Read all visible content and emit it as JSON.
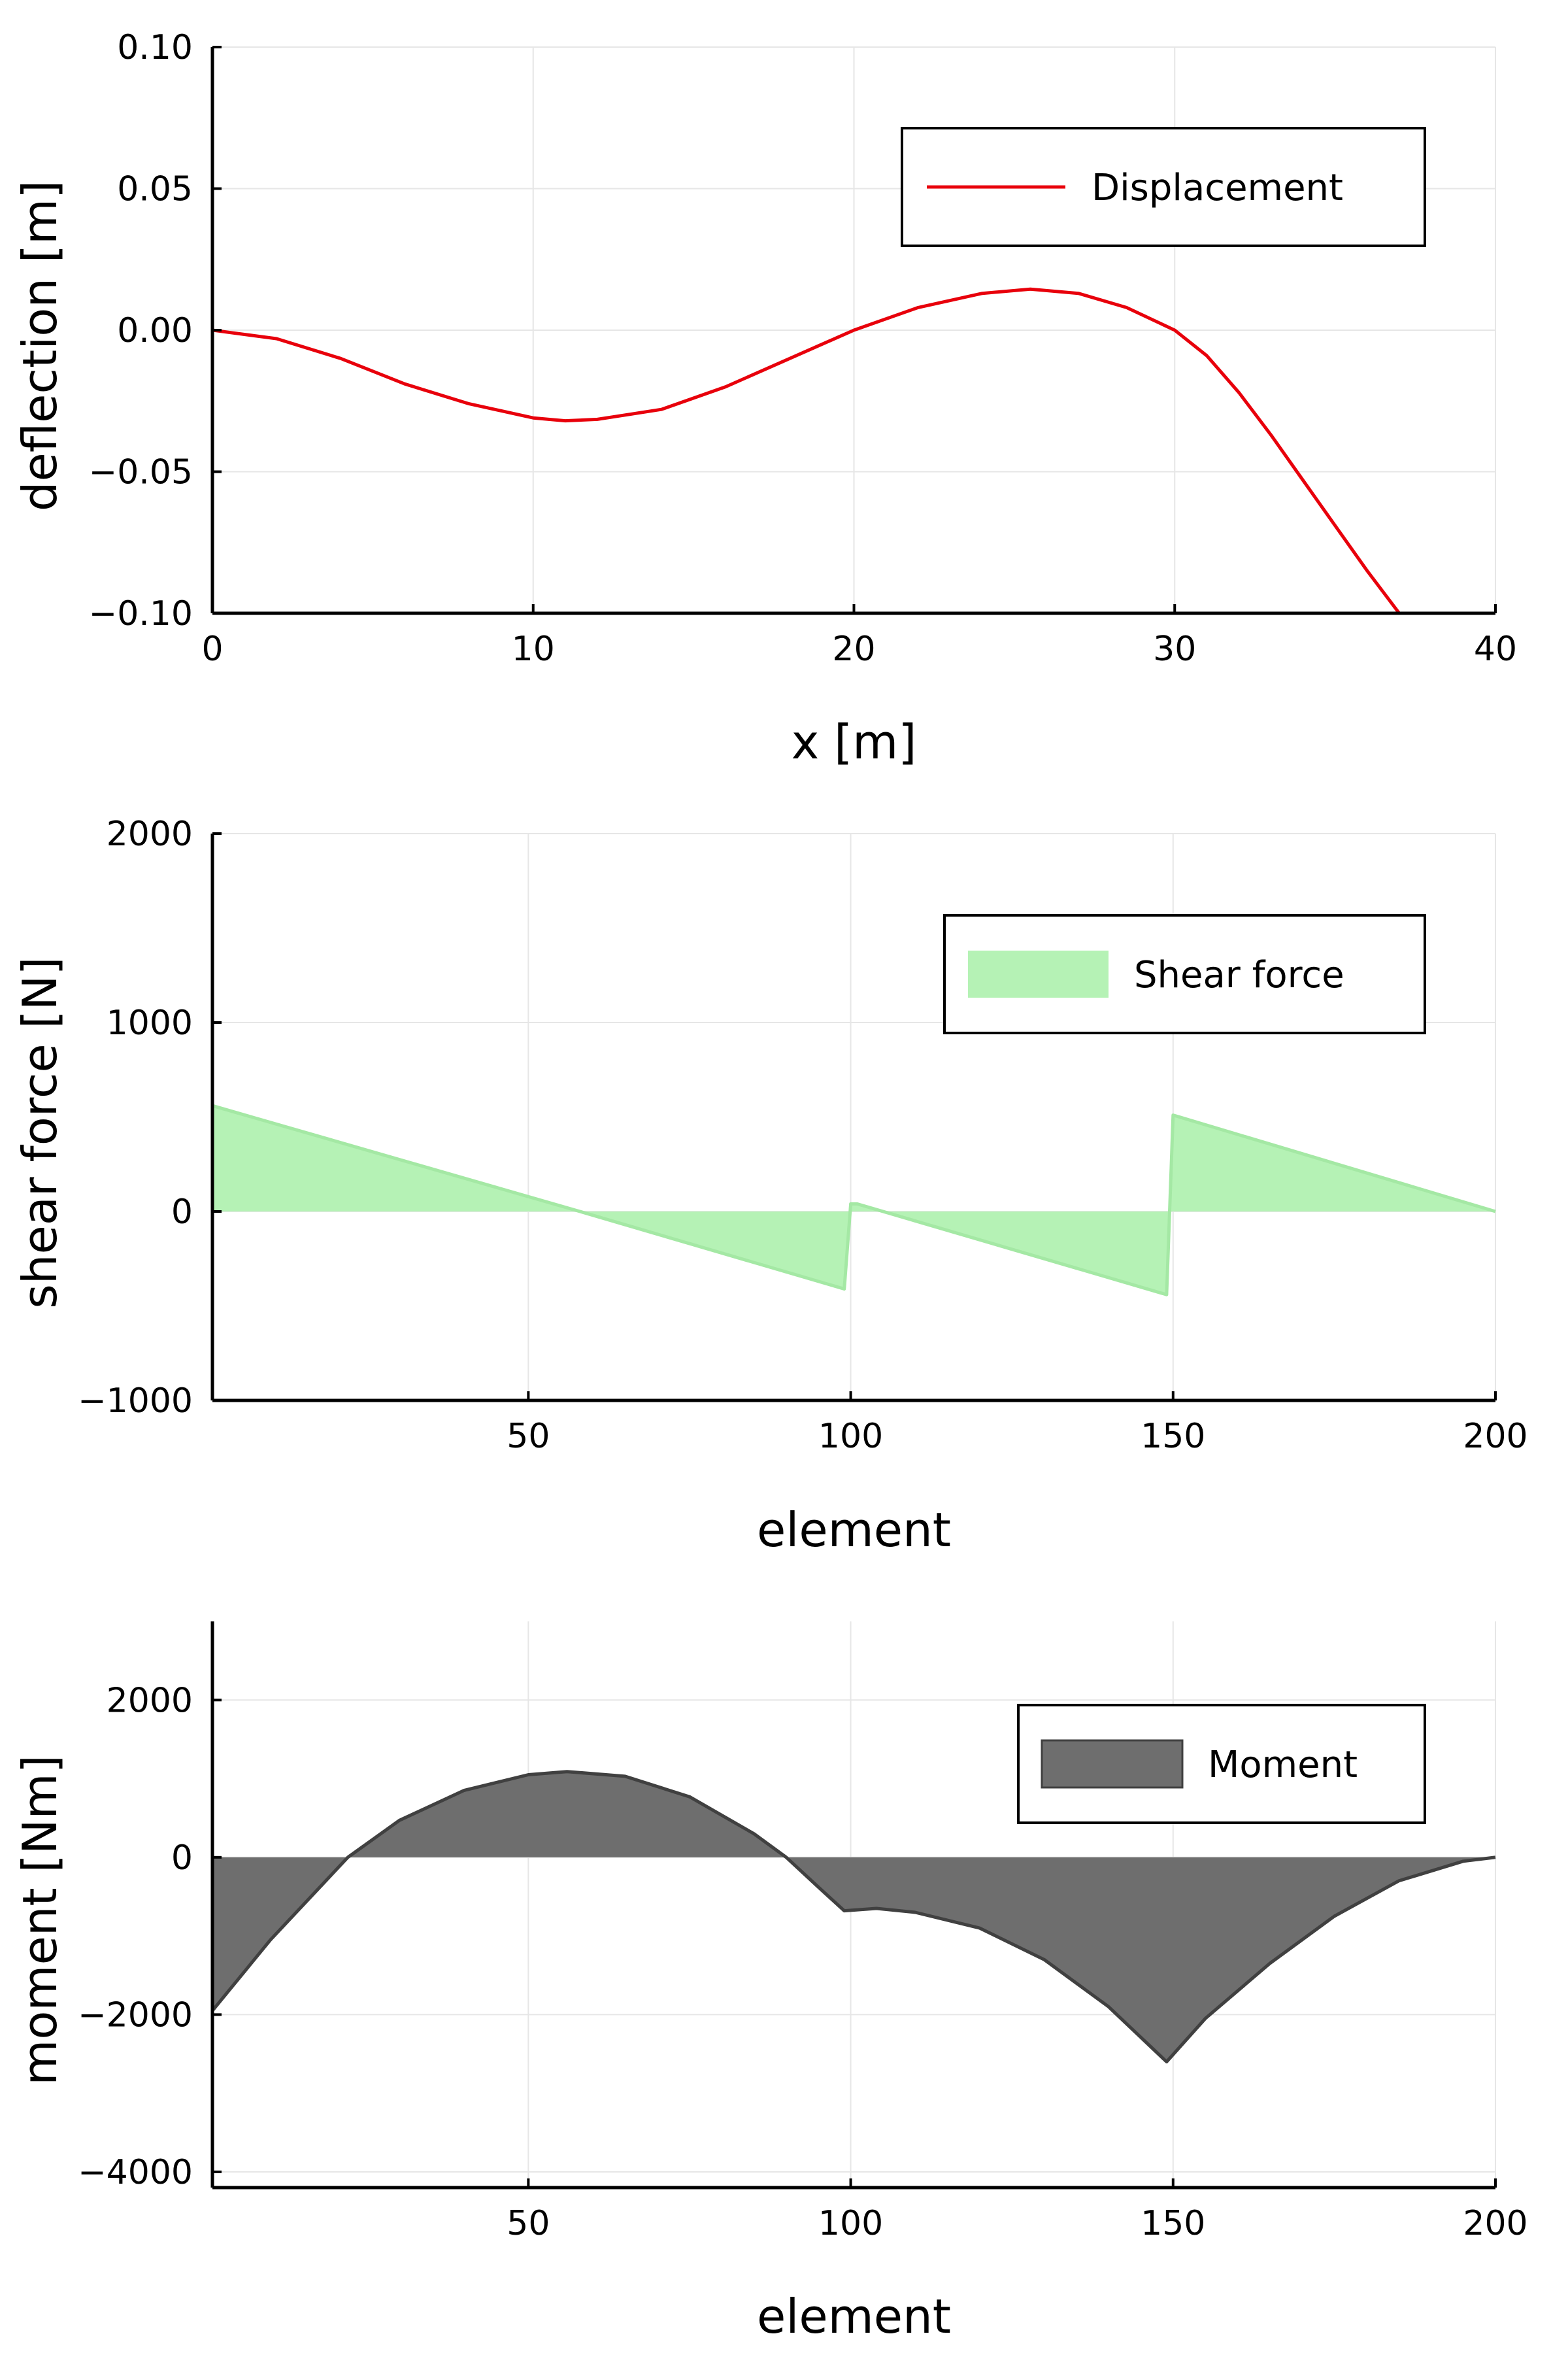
{
  "chart_data": [
    {
      "type": "line",
      "xlabel": "x [m]",
      "ylabel": "deflection [m]",
      "xlim": [
        0,
        40
      ],
      "ylim": [
        -0.1,
        0.1
      ],
      "xticks": [
        0,
        10,
        20,
        30,
        40
      ],
      "xtick_labels": [
        "0",
        "10",
        "20",
        "30",
        "40"
      ],
      "yticks": [
        0.1,
        0.05,
        0.0,
        -0.05,
        -0.1
      ],
      "ytick_labels": [
        "0.10",
        "0.05",
        "0.00",
        "−0.05",
        "−0.10"
      ],
      "grid": true,
      "legend_position": "top-right",
      "series": [
        {
          "name": "Displacement",
          "color": "#e8000b",
          "x": [
            0,
            2,
            4,
            6,
            8,
            10,
            11,
            12,
            14,
            16,
            18,
            20,
            22,
            24,
            25.5,
            27,
            28.5,
            30,
            31,
            32,
            33,
            34,
            35,
            36,
            37
          ],
          "y": [
            0,
            -0.003,
            -0.01,
            -0.019,
            -0.026,
            -0.031,
            -0.032,
            -0.0315,
            -0.028,
            -0.02,
            -0.01,
            0.0,
            0.008,
            0.013,
            0.0145,
            0.013,
            0.008,
            0.0,
            -0.009,
            -0.022,
            -0.037,
            -0.053,
            -0.069,
            -0.085,
            -0.1
          ]
        }
      ]
    },
    {
      "type": "area",
      "xlabel": "element",
      "ylabel": "shear force [N]",
      "xlim": [
        1,
        200
      ],
      "ylim": [
        -1000,
        2000
      ],
      "xticks": [
        50,
        100,
        150,
        200
      ],
      "xtick_labels": [
        "50",
        "100",
        "150",
        "200"
      ],
      "yticks": [
        2000,
        1000,
        0,
        -1000
      ],
      "ytick_labels": [
        "2000",
        "1000",
        "0",
        "−1000"
      ],
      "grid": true,
      "legend_position": "top-right",
      "series": [
        {
          "name": "Shear force",
          "color": "#b5f2b5",
          "x": [
            1,
            58,
            99,
            100,
            101,
            149,
            150,
            151,
            200
          ],
          "y": [
            560,
            0,
            -410,
            40,
            40,
            -440,
            510,
            500,
            0
          ]
        }
      ]
    },
    {
      "type": "area",
      "xlabel": "element",
      "ylabel": "moment [Nm]",
      "xlim": [
        1,
        200
      ],
      "ylim": [
        -4200,
        3000
      ],
      "xticks": [
        50,
        100,
        150,
        200
      ],
      "xtick_labels": [
        "50",
        "100",
        "150",
        "200"
      ],
      "yticks": [
        2000,
        0,
        -2000,
        -4000
      ],
      "ytick_labels": [
        "2000",
        "0",
        "−2000",
        "−4000"
      ],
      "grid": true,
      "legend_position": "top-right",
      "series": [
        {
          "name": "Moment",
          "color": "#6e6e6e",
          "x": [
            1,
            10,
            22,
            30,
            40,
            50,
            56,
            65,
            75,
            85,
            90,
            95,
            99,
            104,
            110,
            120,
            130,
            140,
            149,
            155,
            165,
            175,
            185,
            195,
            200
          ],
          "y": [
            -1950,
            -1050,
            0,
            470,
            850,
            1050,
            1090,
            1030,
            770,
            300,
            0,
            -380,
            -680,
            -650,
            -700,
            -900,
            -1300,
            -1900,
            -2600,
            -2050,
            -1350,
            -750,
            -300,
            -50,
            0
          ]
        }
      ]
    }
  ]
}
